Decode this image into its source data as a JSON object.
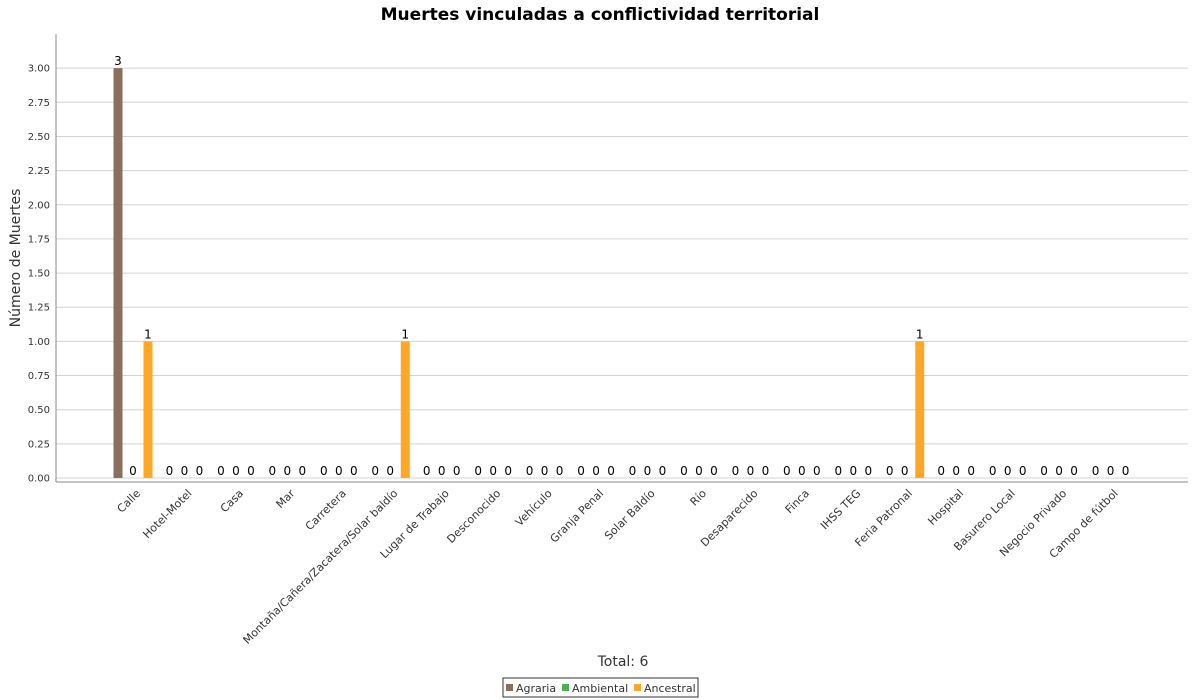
{
  "chart_data": {
    "type": "bar",
    "title": "Muertes vinculadas a conflictividad territorial",
    "xlabel": "",
    "ylabel": "Número de Muertes",
    "ylim": [
      0,
      3.25
    ],
    "yticks": [
      "0.00",
      "0.25",
      "0.50",
      "0.75",
      "1.00",
      "1.25",
      "1.50",
      "1.75",
      "2.00",
      "2.25",
      "2.50",
      "2.75",
      "3.00"
    ],
    "grid": true,
    "legend_position": "bottom-center",
    "categories": [
      "Calle",
      "Hotel-Motel",
      "Casa",
      "Mar",
      "Carretera",
      "Montaña/Cañera/Zacatera/Solar baldío",
      "Lugar de Trabajo",
      "Desconocido",
      "Vehículo",
      "Granja Penal",
      "Solar Baldío",
      "Río",
      "Desaparecido",
      "Finca",
      "IHSS TEG",
      "Feria Patronal",
      "Hospital",
      "Basurero Local",
      "Negocio Privado",
      "Campo de fútbol"
    ],
    "series": [
      {
        "name": "Agraria",
        "color": "#8b6f5c",
        "values": [
          3,
          0,
          0,
          0,
          0,
          0,
          0,
          0,
          0,
          0,
          0,
          0,
          0,
          0,
          0,
          0,
          0,
          0,
          0,
          0
        ]
      },
      {
        "name": "Ambiental",
        "color": "#4caf50",
        "values": [
          0,
          0,
          0,
          0,
          0,
          0,
          0,
          0,
          0,
          0,
          0,
          0,
          0,
          0,
          0,
          0,
          0,
          0,
          0,
          0
        ]
      },
      {
        "name": "Ancestral",
        "color": "#ffa726",
        "values": [
          1,
          0,
          0,
          0,
          0,
          1,
          0,
          0,
          0,
          0,
          0,
          0,
          0,
          0,
          0,
          1,
          0,
          0,
          0,
          0
        ]
      }
    ],
    "footer": "Total: 6"
  }
}
